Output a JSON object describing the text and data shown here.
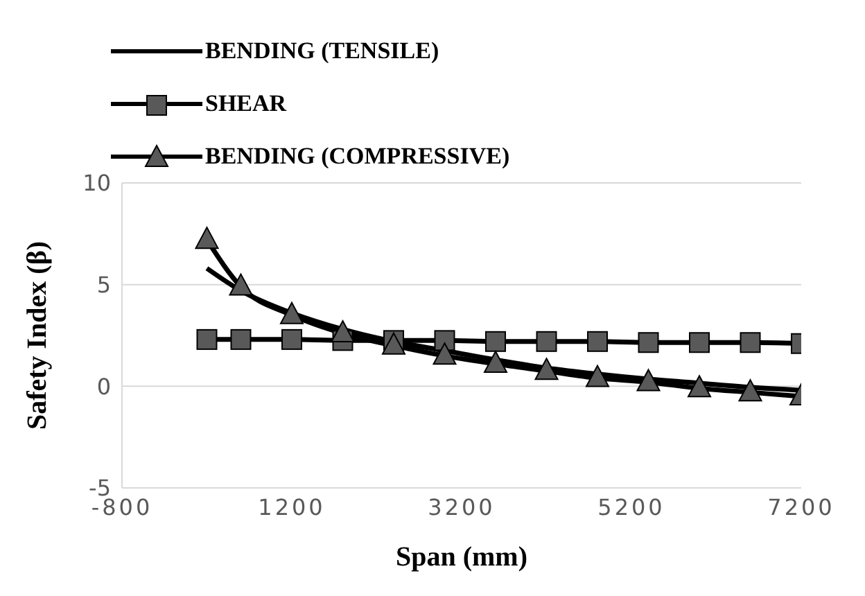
{
  "chart_data": {
    "type": "line",
    "xlabel": "Span (mm)",
    "ylabel": "Safety Index (β)",
    "x": [
      200,
      600,
      1200,
      1800,
      2400,
      3000,
      3600,
      4200,
      4800,
      5400,
      6000,
      6600,
      7200
    ],
    "series": [
      {
        "name": "BENDING (TENSILE)",
        "color": "#000000",
        "marker": "none",
        "values": [
          5.8,
          4.7,
          3.6,
          2.8,
          2.2,
          1.75,
          1.3,
          0.9,
          0.6,
          0.35,
          0.15,
          -0.05,
          -0.2
        ]
      },
      {
        "name": "SHEAR",
        "color": "#000000",
        "marker": "square",
        "values": [
          2.3,
          2.3,
          2.3,
          2.25,
          2.25,
          2.25,
          2.2,
          2.2,
          2.2,
          2.15,
          2.15,
          2.15,
          2.1
        ]
      },
      {
        "name": "BENDING (COMPRESSIVE)",
        "color": "#000000",
        "marker": "triangle",
        "values": [
          7.2,
          4.9,
          3.5,
          2.6,
          2.0,
          1.5,
          1.1,
          0.75,
          0.4,
          0.2,
          -0.1,
          -0.3,
          -0.5
        ]
      }
    ],
    "xlim": [
      -800,
      7200
    ],
    "xticks": [
      -800,
      1200,
      3200,
      5200,
      7200
    ],
    "ylim": [
      -5,
      10
    ],
    "yticks": [
      -5,
      0,
      5,
      10
    ],
    "grid": "y",
    "legend": "top"
  }
}
